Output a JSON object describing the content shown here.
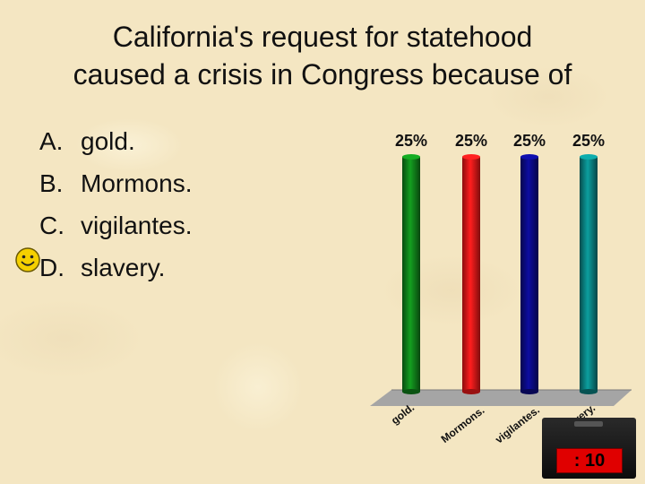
{
  "question": {
    "line1": "California's request for statehood",
    "line2": "caused a crisis in Congress because of"
  },
  "options": [
    {
      "letter": "A.",
      "text": "gold."
    },
    {
      "letter": "B.",
      "text": "Mormons."
    },
    {
      "letter": "C.",
      "text": "vigilantes."
    },
    {
      "letter": "D.",
      "text": "slavery."
    }
  ],
  "correct_marker": "smiley-face-icon",
  "timer": {
    "display": ": 10"
  },
  "chart_data": {
    "type": "bar",
    "categories": [
      "gold.",
      "Mormons.",
      "vigilantes.",
      "slavery."
    ],
    "values": [
      25,
      25,
      25,
      25
    ],
    "value_labels": [
      "25%",
      "25%",
      "25%",
      "25%"
    ],
    "ylim": [
      0,
      25
    ],
    "colors": [
      "#118a1c",
      "#ff1a1a",
      "#0b0b8c",
      "#0a8a8a"
    ],
    "grid": false,
    "three_d": true
  }
}
